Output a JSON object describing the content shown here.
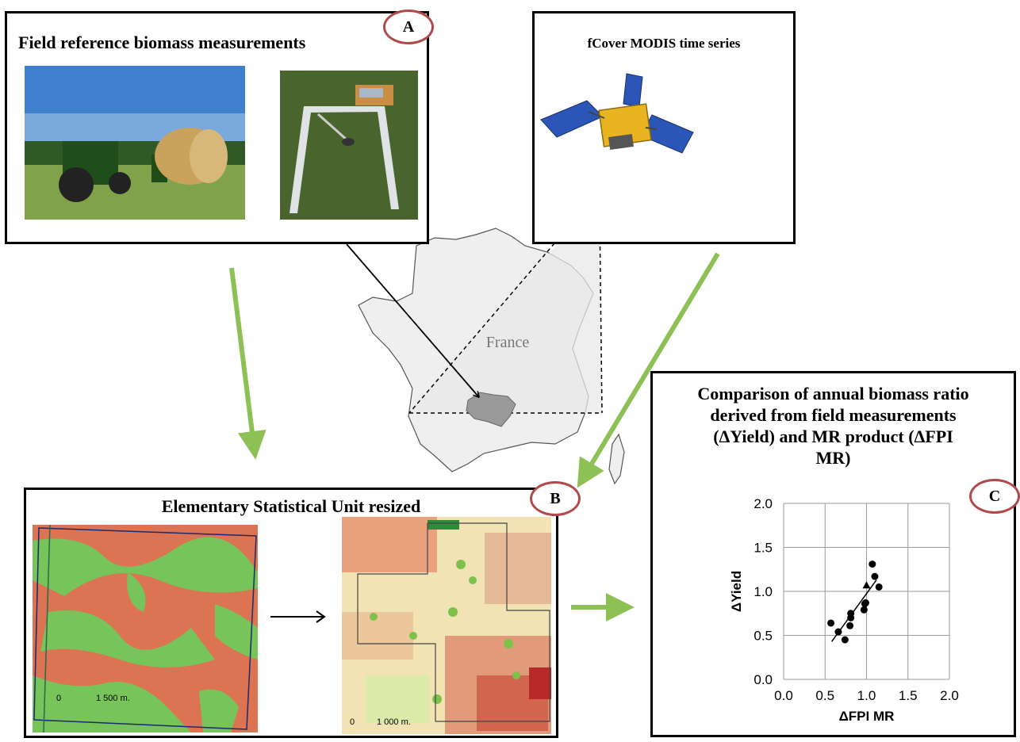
{
  "panel_a": {
    "title": "Field reference biomass measurements",
    "badge": "A"
  },
  "panel_modis": {
    "title": "fCover MODIS time series"
  },
  "map": {
    "label": "France"
  },
  "panel_b": {
    "title": "Elementary Statistical Unit resized",
    "badge": "B",
    "scale_left_zero": "0",
    "scale_left": "1 500 m.",
    "scale_right_zero": "0",
    "scale_right": "1 000 m."
  },
  "panel_c": {
    "title_lines": [
      "Comparison of annual biomass ratio",
      "derived from field measurements",
      "(ΔYield)  and MR product (ΔFPI",
      "MR)"
    ],
    "badge": "C"
  },
  "colors": {
    "arrow_green": "#8dc156",
    "badge_ring": "#b04a4a",
    "map_fill": "#efefef"
  },
  "chart_data": {
    "type": "scatter",
    "xlabel": "ΔFPI MR",
    "ylabel": "ΔYield",
    "xlim": [
      0.0,
      2.0
    ],
    "ylim": [
      0.0,
      2.0
    ],
    "x_ticks": [
      "0.0",
      "0.5",
      "1.0",
      "1.5",
      "2.0"
    ],
    "y_ticks": [
      "0.0",
      "0.5",
      "1.0",
      "1.5",
      "2.0"
    ],
    "grid": true,
    "series": [
      {
        "marker": "circle",
        "x": [
          0.57,
          0.66,
          0.74,
          0.8,
          0.81,
          0.81,
          0.97,
          0.98,
          0.99,
          1.07,
          1.1,
          1.15
        ],
        "y": [
          0.64,
          0.54,
          0.45,
          0.61,
          0.7,
          0.75,
          0.79,
          0.86,
          0.87,
          1.31,
          1.17,
          1.05
        ]
      },
      {
        "marker": "triangle",
        "x": [
          1.0
        ],
        "y": [
          1.07
        ]
      }
    ],
    "trendline": {
      "x": [
        0.58,
        1.12
      ],
      "y": [
        0.43,
        1.13
      ]
    }
  }
}
